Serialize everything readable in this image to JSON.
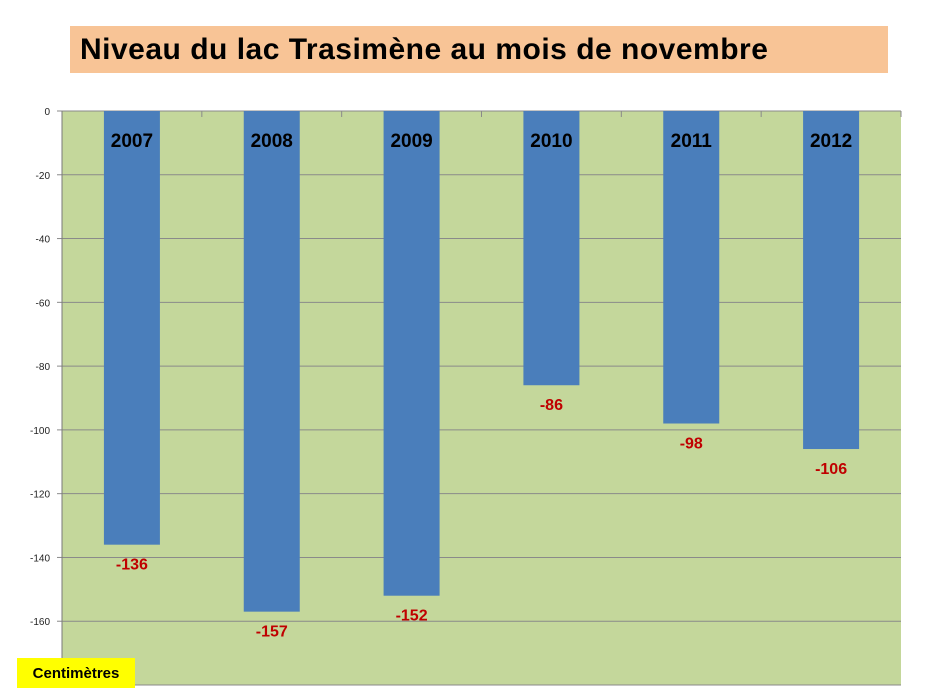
{
  "title": "Niveau du lac Trasimène au mois de novembre",
  "unit_label": "Centimètres",
  "colors": {
    "plot_background": "#c4d79b",
    "bar": "#4a7ebb",
    "data_label": "#c00000",
    "title_background": "#f8c496",
    "unit_background": "#ffff00"
  },
  "chart_data": {
    "type": "bar",
    "title": "Niveau du lac Trasimène au mois de novembre",
    "ylabel": "Centimètres",
    "xlabel": "",
    "categories": [
      "2007",
      "2008",
      "2009",
      "2010",
      "2011",
      "2012"
    ],
    "values": [
      -136,
      -157,
      -152,
      -86,
      -98,
      -106
    ],
    "data_labels": [
      "-136",
      "-157",
      "-152",
      "-86",
      "-98",
      "-106"
    ],
    "ylim": [
      -180,
      0
    ],
    "yticks": [
      0,
      -20,
      -40,
      -60,
      -80,
      -100,
      -120,
      -140,
      -160
    ],
    "category_labels_position": "top of bars",
    "grid": true
  }
}
